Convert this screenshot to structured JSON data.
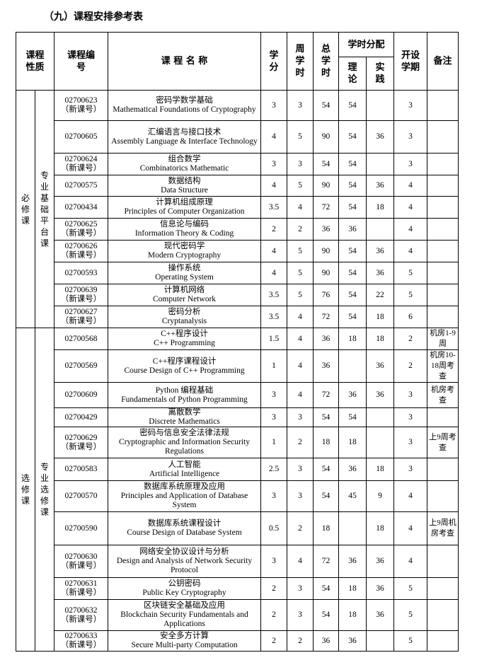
{
  "title": "（九）课程安排参考表",
  "header": {
    "nature": "课程性质",
    "code": "课程编号",
    "name": "课 程 名 称",
    "credit": "学分",
    "weekly": "周学时",
    "total": "总学时",
    "split": "学时分配",
    "theory": "理论",
    "practice": "实践",
    "semester": "开设学期",
    "remark": "备注"
  },
  "groups": [
    {
      "type": "必修课",
      "platform": "专业基础平台课",
      "rows": [
        {
          "code": "02700623",
          "note": "（新课号）",
          "name_cn": "密码学数学基础",
          "name_en": "Mathematical Foundations of Cryptography",
          "credit": 3,
          "weekly": 3,
          "total": 54,
          "theory": 54,
          "practice": null,
          "semester": 3,
          "remark": null
        },
        {
          "code": "02700605",
          "note": null,
          "name_cn": "汇编语言与接口技术",
          "name_en": "Assembly Language & Interface Technology",
          "credit": 4,
          "weekly": 5,
          "total": 90,
          "theory": 54,
          "practice": 36,
          "semester": 3,
          "remark": null
        },
        {
          "code": "02700624",
          "note": "（新课号）",
          "name_cn": "组合数学",
          "name_en": "Combinatorics Mathematic",
          "credit": 3,
          "weekly": 3,
          "total": 54,
          "theory": 54,
          "practice": null,
          "semester": 3,
          "remark": null
        },
        {
          "code": "02700575",
          "note": null,
          "name_cn": "数据结构",
          "name_en": "Data Structure",
          "credit": 4,
          "weekly": 5,
          "total": 90,
          "theory": 54,
          "practice": 36,
          "semester": 4,
          "remark": null
        },
        {
          "code": "02700434",
          "note": null,
          "name_cn": "计算机组成原理",
          "name_en": "Principles of Computer Organization",
          "credit": 3.5,
          "weekly": 4,
          "total": 72,
          "theory": 54,
          "practice": 18,
          "semester": 4,
          "remark": null
        },
        {
          "code": "02700625",
          "note": "（新课号）",
          "name_cn": "信息论与编码",
          "name_en": "Information Theory & Coding",
          "credit": 2,
          "weekly": 2,
          "total": 36,
          "theory": 36,
          "practice": null,
          "semester": 4,
          "remark": null
        },
        {
          "code": "02700626",
          "note": "（新课号）",
          "name_cn": "现代密码学",
          "name_en": "Modern Cryptography",
          "credit": 4,
          "weekly": 5,
          "total": 90,
          "theory": 54,
          "practice": 36,
          "semester": 4,
          "remark": null
        },
        {
          "code": "02700593",
          "note": null,
          "name_cn": "操作系统",
          "name_en": "Operating System",
          "credit": 4,
          "weekly": 5,
          "total": 90,
          "theory": 54,
          "practice": 36,
          "semester": 5,
          "remark": null
        },
        {
          "code": "02700639",
          "note": "（新课号）",
          "name_cn": "计算机网络",
          "name_en": "Computer Network",
          "credit": 3.5,
          "weekly": 5,
          "total": 76,
          "theory": 54,
          "practice": 22,
          "semester": 5,
          "remark": null
        },
        {
          "code": "02700627",
          "note": "（新课号）",
          "name_cn": "密码分析",
          "name_en": "Cryptanalysis",
          "credit": 3.5,
          "weekly": 4,
          "total": 72,
          "theory": 54,
          "practice": 18,
          "semester": 6,
          "remark": null
        }
      ]
    },
    {
      "type": "选修课",
      "platform": "专业选修课",
      "rows": [
        {
          "code": "02700568",
          "note": null,
          "name_cn": "C++程序设计",
          "name_en": "C++ Programming",
          "credit": 1.5,
          "weekly": 4,
          "total": 36,
          "theory": 18,
          "practice": 18,
          "semester": 2,
          "remark": "机房1-9周"
        },
        {
          "code": "02700569",
          "note": null,
          "name_cn": "C++程序课程设计",
          "name_en": "Course Design of C++ Programming",
          "credit": 1,
          "weekly": 4,
          "total": 36,
          "theory": null,
          "practice": 36,
          "semester": 2,
          "remark": "机房10-18周考查"
        },
        {
          "code": "02700609",
          "note": null,
          "name_cn": "Python 编程基础",
          "name_en": "Fundamentals of Python Programming",
          "credit": 3,
          "weekly": 4,
          "total": 72,
          "theory": 36,
          "practice": 36,
          "semester": 3,
          "remark": "机房考查"
        },
        {
          "code": "02700429",
          "note": null,
          "name_cn": "离散数学",
          "name_en": "Discrete Mathematics",
          "credit": 3,
          "weekly": 3,
          "total": 54,
          "theory": 54,
          "practice": null,
          "semester": 3,
          "remark": null
        },
        {
          "code": "02700629",
          "note": "（新课号）",
          "name_cn": "密码与信息安全法律法规",
          "name_en": "Cryptographic and Information Security Regulations",
          "credit": 1,
          "weekly": 2,
          "total": 18,
          "theory": 18,
          "practice": null,
          "semester": 3,
          "remark": "上9周考查"
        },
        {
          "code": "02700583",
          "note": null,
          "name_cn": "人工智能",
          "name_en": "Artificial Intelligence",
          "credit": 2.5,
          "weekly": 3,
          "total": 54,
          "theory": 36,
          "practice": 18,
          "semester": 3,
          "remark": null
        },
        {
          "code": "02700570",
          "note": null,
          "name_cn": "数据库系统原理及应用",
          "name_en": "Principles and Application of Database System",
          "credit": 3,
          "weekly": 3,
          "total": 54,
          "theory": 45,
          "practice": 9,
          "semester": 4,
          "remark": null
        },
        {
          "code": "02700590",
          "note": null,
          "name_cn": "数据库系统课程设计",
          "name_en": "Course Design of Database System",
          "credit": 0.5,
          "weekly": 2,
          "total": 18,
          "theory": null,
          "practice": 18,
          "semester": 4,
          "remark": "上9周机房考查"
        },
        {
          "code": "02700630",
          "note": "（新课号）",
          "name_cn": "网络安全协议设计与分析",
          "name_en": "Design and Analysis of Network Security Protocol",
          "credit": 3,
          "weekly": 4,
          "total": 72,
          "theory": 36,
          "practice": 36,
          "semester": 4,
          "remark": null
        },
        {
          "code": "02700631",
          "note": "（新课号）",
          "name_cn": "公钥密码",
          "name_en": "Public Key Cryptography",
          "credit": 2,
          "weekly": 3,
          "total": 54,
          "theory": 18,
          "practice": 36,
          "semester": 5,
          "remark": null
        },
        {
          "code": "02700632",
          "note": "（新课号）",
          "name_cn": "区块链安全基础及应用",
          "name_en": "Blockchain Security Fundamentals and Applications",
          "credit": 2,
          "weekly": 3,
          "total": 54,
          "theory": 18,
          "practice": 36,
          "semester": 5,
          "remark": null
        },
        {
          "code": "02700633",
          "note": "（新课号）",
          "name_cn": "安全多方计算",
          "name_en": "Secure Multi-party Computation",
          "credit": 2,
          "weekly": 2,
          "total": 36,
          "theory": 36,
          "practice": null,
          "semester": 5,
          "remark": null
        }
      ]
    }
  ]
}
